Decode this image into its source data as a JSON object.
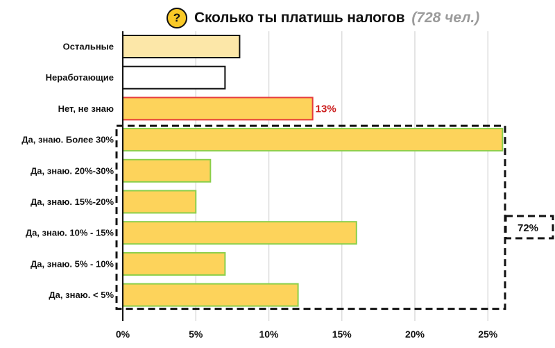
{
  "title": {
    "icon": "question-icon",
    "icon_glyph": "?",
    "text": "Сколько ты платишь налогов",
    "sample": "(728 чел.)"
  },
  "chart_data": {
    "type": "bar",
    "orientation": "horizontal",
    "categories": [
      "Остальные",
      "Неработающие",
      "Нет, не знаю",
      "Да, знаю. Более 30%",
      "Да, знаю. 20%-30%",
      "Да, знаю. 15%-20%",
      "Да, знаю. 10% - 15%",
      "Да, знаю. 5% - 10%",
      "Да, знаю. < 5%"
    ],
    "values": [
      8,
      7,
      13,
      26,
      6,
      5,
      16,
      7,
      12
    ],
    "xlim": [
      0,
      26
    ],
    "xticks": [
      "0%",
      "5%",
      "10%",
      "15%",
      "20%",
      "25%"
    ],
    "xtick_values": [
      0,
      5,
      10,
      15,
      20,
      25
    ],
    "grid": "vertical",
    "annotations": [
      {
        "text": "13%",
        "target": "Нет, не знаю",
        "color": "#cc1f1f"
      },
      {
        "text": "72%",
        "target_group": "Да, знаю",
        "style": "dashed-box"
      }
    ],
    "colors": {
      "fill_yellow": "#fdd35b",
      "fill_light": "#fce7a8",
      "fill_white": "#ffffff",
      "border_black": "#111111",
      "border_red": "#e63b3b",
      "border_green": "#8bcf4a",
      "grid": "#dcdcdc"
    }
  }
}
